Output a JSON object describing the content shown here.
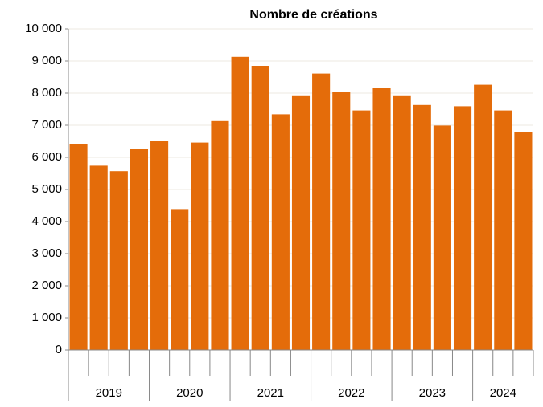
{
  "chart_data": {
    "type": "bar",
    "title": "Nombre de créations",
    "categories": [
      "2019",
      "2019",
      "2019",
      "2019",
      "2020",
      "2020",
      "2020",
      "2020",
      "2021",
      "2021",
      "2021",
      "2021",
      "2022",
      "2022",
      "2022",
      "2022",
      "2023",
      "2023",
      "2023",
      "2023",
      "2024",
      "2024",
      "2024"
    ],
    "values": [
      6420,
      5740,
      5570,
      6260,
      6500,
      4390,
      6460,
      7130,
      9130,
      8850,
      7340,
      7930,
      8610,
      8040,
      7460,
      8160,
      7930,
      7630,
      6990,
      7590,
      8260,
      7460,
      6780
    ],
    "color": "#e46c0a",
    "ylim": [
      0,
      10000
    ],
    "yticks": [
      0,
      {
        "value": 1000,
        "label": "1 000"
      },
      {
        "value": 2000,
        "label": "2 000"
      },
      {
        "value": 3000,
        "label": "3 000"
      },
      {
        "value": 4000,
        "label": "4 000"
      },
      {
        "value": 5000,
        "label": "5 000"
      },
      {
        "value": 6000,
        "label": "6 000"
      },
      {
        "value": 7000,
        "label": "7 000"
      },
      {
        "value": 8000,
        "label": "8 000"
      },
      {
        "value": 9000,
        "label": "9 000"
      },
      {
        "value": 10000,
        "label": "10 000"
      }
    ],
    "grid": true
  }
}
